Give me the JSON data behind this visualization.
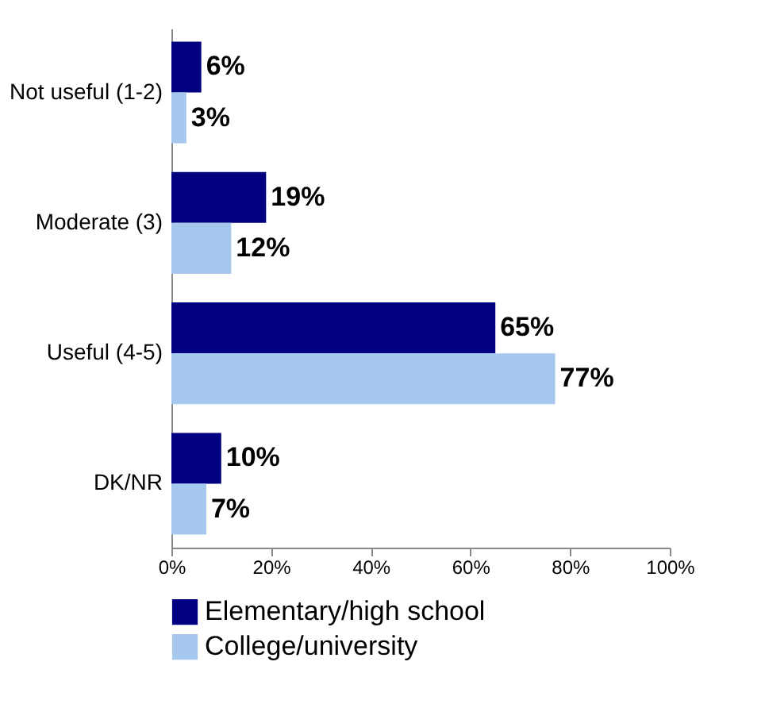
{
  "chart_data": {
    "type": "bar",
    "orientation": "horizontal",
    "categories": [
      "Not useful (1-2)",
      "Moderate (3)",
      "Useful (4-5)",
      "DK/NR"
    ],
    "series": [
      {
        "name": "Elementary/high school",
        "color": "#000080",
        "values": [
          6,
          19,
          65,
          10
        ],
        "value_labels": [
          "6%",
          "19%",
          "65%",
          "10%"
        ]
      },
      {
        "name": "College/university",
        "color": "#a6c8ee",
        "values": [
          3,
          12,
          77,
          7
        ],
        "value_labels": [
          "3%",
          "12%",
          "77%",
          "7%"
        ]
      }
    ],
    "xlim": [
      0,
      100
    ],
    "xticks": [
      {
        "value": 0,
        "label": "0%"
      },
      {
        "value": 20,
        "label": "20%"
      },
      {
        "value": 40,
        "label": "40%"
      },
      {
        "value": 60,
        "label": "60%"
      },
      {
        "value": 80,
        "label": "80%"
      },
      {
        "value": 100,
        "label": "100%"
      }
    ],
    "legend": "bottom",
    "grid": false
  }
}
